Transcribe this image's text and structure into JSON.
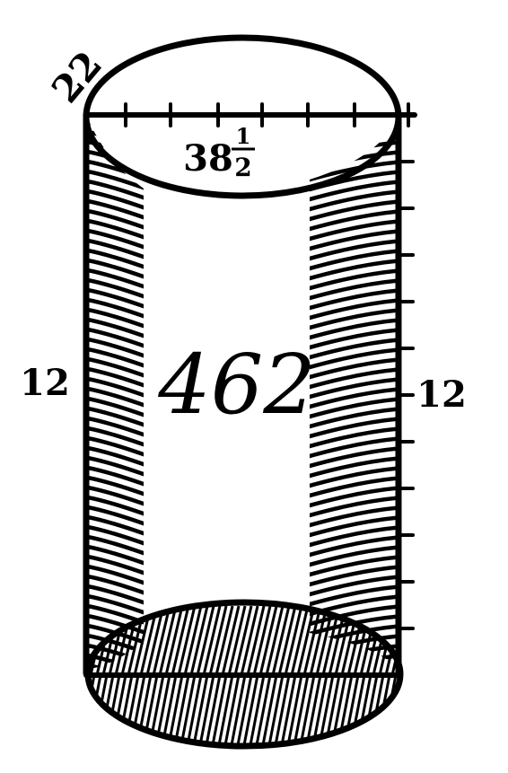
{
  "figure": {
    "top_circumference_label": "22",
    "top_diameter_whole": "38",
    "top_diameter_fraction_numerator": "1",
    "top_diameter_fraction_denominator": "2",
    "left_height_label": "12",
    "right_height_label": "12",
    "volume_label": "462"
  },
  "colors": {
    "ink": "#000000",
    "paper": "#ffffff"
  }
}
